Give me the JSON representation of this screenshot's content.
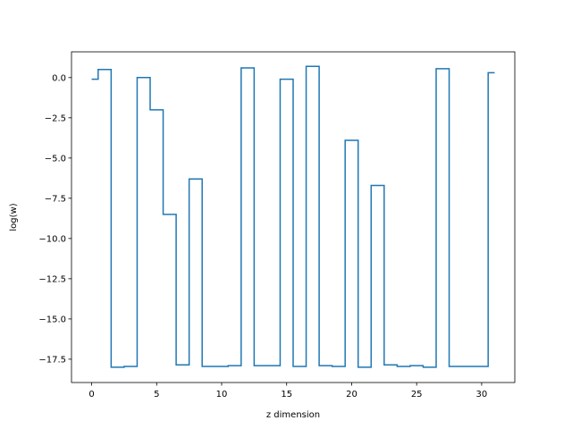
{
  "chart_data": {
    "type": "line",
    "drawstyle": "steps-mid",
    "title": "",
    "xlabel": "z dimension",
    "ylabel": "log(w)",
    "xlim": [
      -1.55,
      32.55
    ],
    "ylim": [
      -18.95,
      1.6
    ],
    "xticks": [
      0,
      5,
      10,
      15,
      20,
      25,
      30
    ],
    "xtick_labels": [
      "0",
      "5",
      "10",
      "15",
      "20",
      "25",
      "30"
    ],
    "yticks": [
      0.0,
      -2.5,
      -5.0,
      -7.5,
      -10.0,
      -12.5,
      -15.0,
      -17.5
    ],
    "ytick_labels": [
      "0.0",
      "−2.5",
      "−5.0",
      "−7.5",
      "−10.0",
      "−12.5",
      "−15.0",
      "−17.5"
    ],
    "grid": false,
    "line_color": "#1f77b4",
    "x": [
      0,
      1,
      2,
      3,
      4,
      5,
      6,
      7,
      8,
      9,
      10,
      11,
      12,
      13,
      14,
      15,
      16,
      17,
      18,
      19,
      20,
      21,
      22,
      23,
      24,
      25,
      26,
      27,
      28,
      29,
      30,
      31
    ],
    "values": [
      -0.1,
      0.5,
      -18.0,
      -17.95,
      0.0,
      -2.0,
      -8.5,
      -17.85,
      -6.3,
      -17.95,
      -17.95,
      -17.9,
      0.6,
      -17.9,
      -17.9,
      -0.1,
      -17.95,
      0.7,
      -17.9,
      -17.95,
      -3.9,
      -18.0,
      -6.7,
      -17.85,
      -17.95,
      -17.9,
      -18.0,
      0.55,
      -17.95,
      -17.95,
      -17.95,
      0.3
    ]
  }
}
